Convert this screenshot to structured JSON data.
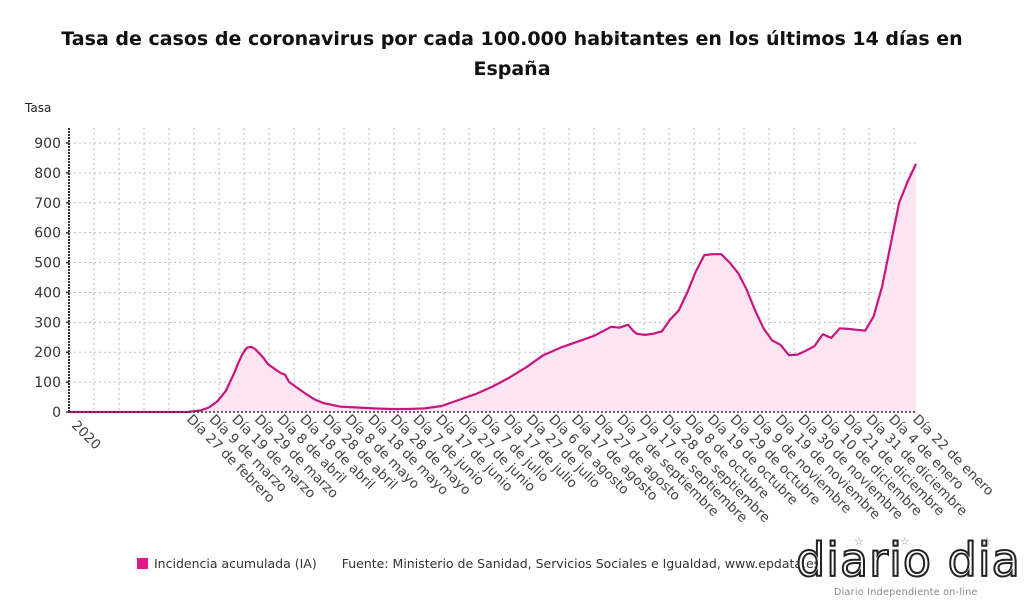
{
  "chart_data": {
    "type": "area",
    "title": "Tasa de casos de coronavirus por cada 100.000 habitantes en los últimos 14 días en España",
    "title_lines": [
      "Tasa de casos de coronavirus por cada 100.000 habitantes en los últimos 14 días en",
      "España"
    ],
    "ylabel": "Tasa",
    "xlabel": "",
    "ylim": [
      0,
      900
    ],
    "yticks": [
      0,
      100,
      200,
      300,
      400,
      500,
      600,
      700,
      800,
      900
    ],
    "grid": true,
    "legend_position": "bottom-left",
    "x_start_label": "2020",
    "xtick_labels": [
      "Día 27 de febrero",
      "Día 9 de marzo",
      "Día 19 de marzo",
      "Día 29 de marzo",
      "Día 8 de abril",
      "Día 18 de abril",
      "Día 28 de abril",
      "Día 8 de mayo",
      "Día 18 de mayo",
      "Día 28 de mayo",
      "Día 7 de junio",
      "Día 17 de junio",
      "Día 27 de junio",
      "Día 7 de julio",
      "Día 17 de julio",
      "Día 27 de julio",
      "Día 6 de agosto",
      "Día 17 de agosto",
      "Día 27 de agosto",
      "Día 7 de septiembre",
      "Día 17 de septiembre",
      "Día 28 de septiembre",
      "Día 8 de octubre",
      "Día 19 de octubre",
      "Día 29 de octubre",
      "Día 9 de noviembre",
      "Día 19 de noviembre",
      "Día 30 de noviembre",
      "Día 10 de diciembre",
      "Día 21 de diciembre",
      "Día 31 de diciembre",
      "Día 4 de enero",
      "Día 22 de enero"
    ],
    "series": [
      {
        "name": "Incidencia acumulada (IA)",
        "color": "#c8157f",
        "fill": "#fde4f2",
        "x_index": [
          0,
          0.08,
          0.12,
          0.14,
          0.155,
          0.165,
          0.175,
          0.185,
          0.195,
          0.2,
          0.205,
          0.21,
          0.215,
          0.22,
          0.225,
          0.23,
          0.235,
          0.24,
          0.245,
          0.25,
          0.255,
          0.26,
          0.27,
          0.28,
          0.29,
          0.3,
          0.32,
          0.34,
          0.36,
          0.38,
          0.4,
          0.42,
          0.44,
          0.46,
          0.48,
          0.5,
          0.52,
          0.54,
          0.56,
          0.58,
          0.6,
          0.62,
          0.63,
          0.64,
          0.65,
          0.66,
          0.665,
          0.67,
          0.68,
          0.69,
          0.7,
          0.71,
          0.72,
          0.73,
          0.74,
          0.75,
          0.76,
          0.77,
          0.78,
          0.79,
          0.8,
          0.81,
          0.82,
          0.83,
          0.84,
          0.85,
          0.86,
          0.87,
          0.88,
          0.89,
          0.9,
          0.91,
          0.92,
          0.93,
          0.94,
          0.95,
          0.96,
          0.97,
          0.98,
          0.99,
          1.0
        ],
        "values": [
          0,
          0,
          0,
          0,
          5,
          15,
          35,
          70,
          130,
          165,
          195,
          215,
          218,
          210,
          195,
          180,
          160,
          150,
          140,
          130,
          125,
          100,
          80,
          60,
          42,
          30,
          18,
          15,
          12,
          10,
          10,
          12,
          20,
          40,
          60,
          85,
          115,
          150,
          190,
          215,
          235,
          255,
          270,
          285,
          282,
          292,
          275,
          262,
          258,
          262,
          270,
          310,
          340,
          400,
          470,
          525,
          528,
          528,
          500,
          465,
          410,
          340,
          280,
          240,
          225,
          190,
          192,
          205,
          220,
          260,
          248,
          280,
          278,
          275,
          272,
          320,
          420,
          560,
          700,
          770,
          830
        ]
      }
    ]
  },
  "legend": {
    "label": "Incidencia acumulada (IA)",
    "color": "#e6168c"
  },
  "source": "Fuente: Ministerio de Sanidad, Servicios Sociales e Igualdad, www.epdata.es",
  "logo": {
    "name": "diario dia",
    "tagline": "Diario Independiente on-line"
  }
}
